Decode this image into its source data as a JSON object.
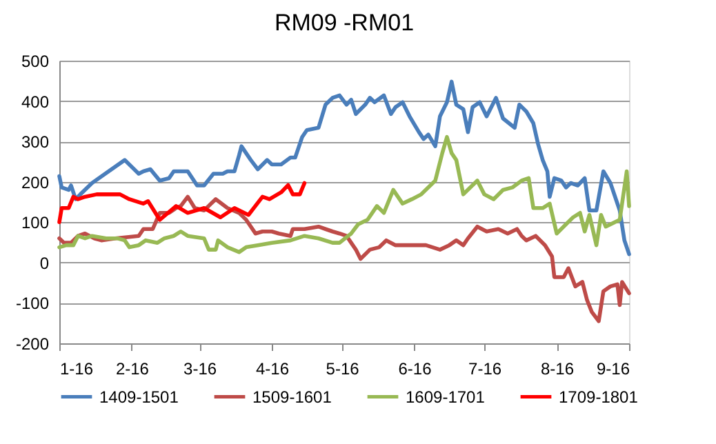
{
  "chart_data": {
    "type": "line",
    "title": "RM09 -RM01",
    "xlim": [
      "2016-01-01",
      "2016-09-01"
    ],
    "xticks": [
      {
        "value": "2016-01-01",
        "label": "1-16"
      },
      {
        "value": "2016-02-01",
        "label": "2-16"
      },
      {
        "value": "2016-03-01",
        "label": "3-16"
      },
      {
        "value": "2016-04-01",
        "label": "4-16"
      },
      {
        "value": "2016-05-01",
        "label": "5-16"
      },
      {
        "value": "2016-06-01",
        "label": "6-16"
      },
      {
        "value": "2016-07-01",
        "label": "7-16"
      },
      {
        "value": "2016-08-01",
        "label": "8-16"
      },
      {
        "value": "2016-09-01",
        "label": "9-16"
      }
    ],
    "ylim": [
      -200,
      500
    ],
    "yticks": [
      -200,
      -100,
      0,
      100,
      200,
      300,
      400,
      500
    ],
    "grid": "y",
    "legend": "bottom",
    "marker": "none",
    "line_style": "solid",
    "series": [
      {
        "name": "1409-1501",
        "color": "#4a7ebb",
        "x": [
          "2016-01-01",
          "2016-01-02",
          "2016-01-05",
          "2016-01-06",
          "2016-01-08",
          "2016-01-10",
          "2016-01-15",
          "2016-01-29",
          "2016-02-04",
          "2016-02-06",
          "2016-02-09",
          "2016-02-13",
          "2016-02-17",
          "2016-02-19",
          "2016-02-25",
          "2016-02-29",
          "2016-03-03",
          "2016-03-07",
          "2016-03-11",
          "2016-03-13",
          "2016-03-16",
          "2016-03-18",
          "2016-03-19",
          "2016-03-23",
          "2016-03-26",
          "2016-03-30",
          "2016-04-01",
          "2016-04-05",
          "2016-04-09",
          "2016-04-11",
          "2016-04-14",
          "2016-04-16",
          "2016-04-21",
          "2016-04-24",
          "2016-04-27",
          "2016-04-30",
          "2016-05-03",
          "2016-05-05",
          "2016-05-07",
          "2016-05-11",
          "2016-05-13",
          "2016-05-15",
          "2016-05-19",
          "2016-05-22",
          "2016-05-24",
          "2016-05-27",
          "2016-05-30",
          "2016-06-03",
          "2016-06-05",
          "2016-06-07",
          "2016-06-10",
          "2016-06-12",
          "2016-06-15",
          "2016-06-17",
          "2016-06-19",
          "2016-06-22",
          "2016-06-24",
          "2016-06-26",
          "2016-06-29",
          "2016-07-02",
          "2016-07-06",
          "2016-07-09",
          "2016-07-14",
          "2016-07-16",
          "2016-07-19",
          "2016-07-22",
          "2016-07-24",
          "2016-07-26",
          "2016-07-28",
          "2016-07-29",
          "2016-07-31",
          "2016-08-03",
          "2016-08-05",
          "2016-08-07",
          "2016-08-10",
          "2016-08-13",
          "2016-08-15",
          "2016-08-18",
          "2016-08-21",
          "2016-08-24",
          "2016-08-28",
          "2016-08-30",
          "2016-09-01"
        ],
        "values": [
          214,
          186,
          180,
          191,
          157,
          169,
          197,
          254,
          220,
          226,
          231,
          203,
          209,
          226,
          226,
          191,
          191,
          220,
          220,
          226,
          226,
          266,
          288,
          254,
          231,
          254,
          243,
          243,
          260,
          260,
          311,
          328,
          334,
          391,
          408,
          414,
          391,
          403,
          368,
          391,
          408,
          397,
          414,
          368,
          385,
          397,
          362,
          323,
          306,
          317,
          288,
          362,
          397,
          448,
          391,
          380,
          323,
          385,
          397,
          362,
          408,
          357,
          334,
          391,
          374,
          345,
          294,
          254,
          226,
          163,
          209,
          203,
          186,
          197,
          191,
          209,
          129,
          129,
          226,
          197,
          129,
          55,
          21
        ]
      },
      {
        "name": "1509-1601",
        "color": "#be4b48",
        "x": [
          "2016-01-01",
          "2016-01-03",
          "2016-01-06",
          "2016-01-09",
          "2016-01-12",
          "2016-01-16",
          "2016-01-19",
          "2016-01-25",
          "2016-02-04",
          "2016-02-06",
          "2016-02-10",
          "2016-02-13",
          "2016-02-17",
          "2016-02-20",
          "2016-02-22",
          "2016-02-25",
          "2016-02-28",
          "2016-03-03",
          "2016-03-06",
          "2016-03-08",
          "2016-03-13",
          "2016-03-18",
          "2016-03-21",
          "2016-03-25",
          "2016-03-28",
          "2016-04-01",
          "2016-04-04",
          "2016-04-09",
          "2016-04-10",
          "2016-04-15",
          "2016-04-21",
          "2016-04-24",
          "2016-04-27",
          "2016-04-30",
          "2016-05-03",
          "2016-05-07",
          "2016-05-09",
          "2016-05-13",
          "2016-05-17",
          "2016-05-20",
          "2016-05-24",
          "2016-05-28",
          "2016-06-01",
          "2016-06-06",
          "2016-06-12",
          "2016-06-16",
          "2016-06-19",
          "2016-06-22",
          "2016-06-24",
          "2016-06-28",
          "2016-07-02",
          "2016-07-07",
          "2016-07-11",
          "2016-07-15",
          "2016-07-17",
          "2016-07-19",
          "2016-07-23",
          "2016-07-27",
          "2016-07-30",
          "2016-07-31",
          "2016-08-04",
          "2016-08-06",
          "2016-08-09",
          "2016-08-12",
          "2016-08-14",
          "2016-08-16",
          "2016-08-19",
          "2016-08-21",
          "2016-08-24",
          "2016-08-27",
          "2016-08-28",
          "2016-08-29",
          "2016-09-01"
        ],
        "values": [
          60,
          49,
          49,
          66,
          72,
          60,
          55,
          60,
          66,
          83,
          83,
          123,
          123,
          135,
          140,
          163,
          135,
          129,
          146,
          157,
          135,
          123,
          106,
          72,
          77,
          77,
          72,
          66,
          83,
          83,
          89,
          83,
          77,
          72,
          66,
          32,
          9,
          32,
          38,
          55,
          43,
          43,
          43,
          43,
          32,
          43,
          55,
          43,
          60,
          89,
          77,
          83,
          72,
          83,
          66,
          55,
          66,
          43,
          15,
          -36,
          -36,
          -14,
          -59,
          -48,
          -93,
          -122,
          -145,
          -71,
          -59,
          -54,
          -105,
          -48,
          -76
        ]
      },
      {
        "name": "1609-1701",
        "color": "#98b954",
        "x": [
          "2016-01-01",
          "2016-01-04",
          "2016-01-07",
          "2016-01-09",
          "2016-01-12",
          "2016-01-15",
          "2016-01-21",
          "2016-01-26",
          "2016-01-29",
          "2016-01-31",
          "2016-02-04",
          "2016-02-07",
          "2016-02-12",
          "2016-02-15",
          "2016-02-19",
          "2016-02-22",
          "2016-02-25",
          "2016-03-03",
          "2016-03-05",
          "2016-03-08",
          "2016-03-09",
          "2016-03-13",
          "2016-03-18",
          "2016-03-21",
          "2016-03-26",
          "2016-04-01",
          "2016-04-09",
          "2016-04-15",
          "2016-04-21",
          "2016-04-27",
          "2016-04-30",
          "2016-05-05",
          "2016-05-08",
          "2016-05-12",
          "2016-05-16",
          "2016-05-19",
          "2016-05-23",
          "2016-05-27",
          "2016-05-31",
          "2016-06-04",
          "2016-06-10",
          "2016-06-13",
          "2016-06-15",
          "2016-06-17",
          "2016-06-19",
          "2016-06-22",
          "2016-06-28",
          "2016-07-01",
          "2016-07-05",
          "2016-07-09",
          "2016-07-13",
          "2016-07-17",
          "2016-07-20",
          "2016-07-22",
          "2016-07-26",
          "2016-07-29",
          "2016-08-01",
          "2016-08-05",
          "2016-08-08",
          "2016-08-11",
          "2016-08-13",
          "2016-08-15",
          "2016-08-18",
          "2016-08-20",
          "2016-08-22",
          "2016-08-28",
          "2016-08-31",
          "2016-09-01"
        ],
        "values": [
          38,
          43,
          43,
          66,
          60,
          66,
          60,
          60,
          55,
          38,
          43,
          55,
          49,
          60,
          66,
          77,
          66,
          60,
          32,
          32,
          55,
          38,
          26,
          38,
          43,
          49,
          55,
          66,
          60,
          49,
          49,
          72,
          95,
          106,
          140,
          123,
          180,
          146,
          157,
          169,
          203,
          271,
          311,
          271,
          254,
          169,
          203,
          169,
          157,
          180,
          186,
          203,
          209,
          135,
          135,
          146,
          72,
          95,
          112,
          123,
          77,
          118,
          43,
          118,
          89,
          106,
          226,
          140
        ]
      },
      {
        "name": "1709-1801",
        "color": "#ff0000",
        "x": [
          "2016-01-01",
          "2016-01-02",
          "2016-01-05",
          "2016-01-07",
          "2016-01-09",
          "2016-01-12",
          "2016-01-17",
          "2016-01-27",
          "2016-01-31",
          "2016-02-06",
          "2016-02-08",
          "2016-02-13",
          "2016-02-20",
          "2016-02-25",
          "2016-03-03",
          "2016-03-10",
          "2016-03-16",
          "2016-03-22",
          "2016-03-28",
          "2016-03-31",
          "2016-04-05",
          "2016-04-08",
          "2016-04-10",
          "2016-04-13",
          "2016-04-15"
        ],
        "values": [
          100,
          135,
          135,
          163,
          157,
          163,
          169,
          169,
          157,
          146,
          152,
          106,
          140,
          123,
          135,
          112,
          135,
          118,
          163,
          157,
          174,
          192,
          169,
          169,
          197
        ]
      }
    ]
  }
}
